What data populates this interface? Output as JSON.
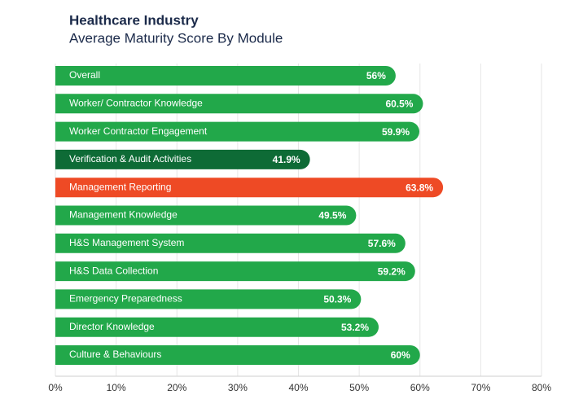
{
  "chart_data": {
    "type": "hbar",
    "title": "Healthcare Industry",
    "subtitle": "Average Maturity Score By Module",
    "categories": [
      "Overall",
      "Worker/ Contractor Knowledge",
      "Worker Contractor Engagement",
      "Verification & Audit Activities",
      "Management Reporting",
      "Management Knowledge",
      "H&S Management System",
      "H&S Data Collection",
      "Emergency Preparedness",
      "Director Knowledge",
      "Culture & Behaviours"
    ],
    "values": [
      56,
      60.5,
      59.9,
      41.9,
      63.8,
      49.5,
      57.6,
      59.2,
      50.3,
      53.2,
      60
    ],
    "value_labels": [
      "56%",
      "60.5%",
      "59.9%",
      "41.9%",
      "63.8%",
      "49.5%",
      "57.6%",
      "59.2%",
      "50.3%",
      "53.2%",
      "60%"
    ],
    "colors": [
      "#22a84a",
      "#22a84a",
      "#22a84a",
      "#0e6b36",
      "#ee4a25",
      "#22a84a",
      "#22a84a",
      "#22a84a",
      "#22a84a",
      "#22a84a",
      "#22a84a"
    ],
    "xlim": [
      0,
      80
    ],
    "xticks": [
      {
        "value": 0,
        "label": "0%"
      },
      {
        "value": 10,
        "label": "10%"
      },
      {
        "value": 20,
        "label": "20%"
      },
      {
        "value": 30,
        "label": "30%"
      },
      {
        "value": 40,
        "label": "40%"
      },
      {
        "value": 50,
        "label": "50%"
      },
      {
        "value": 60,
        "label": "60%"
      },
      {
        "value": 70,
        "label": "70%"
      },
      {
        "value": 80,
        "label": "80%"
      }
    ],
    "grid": true
  }
}
